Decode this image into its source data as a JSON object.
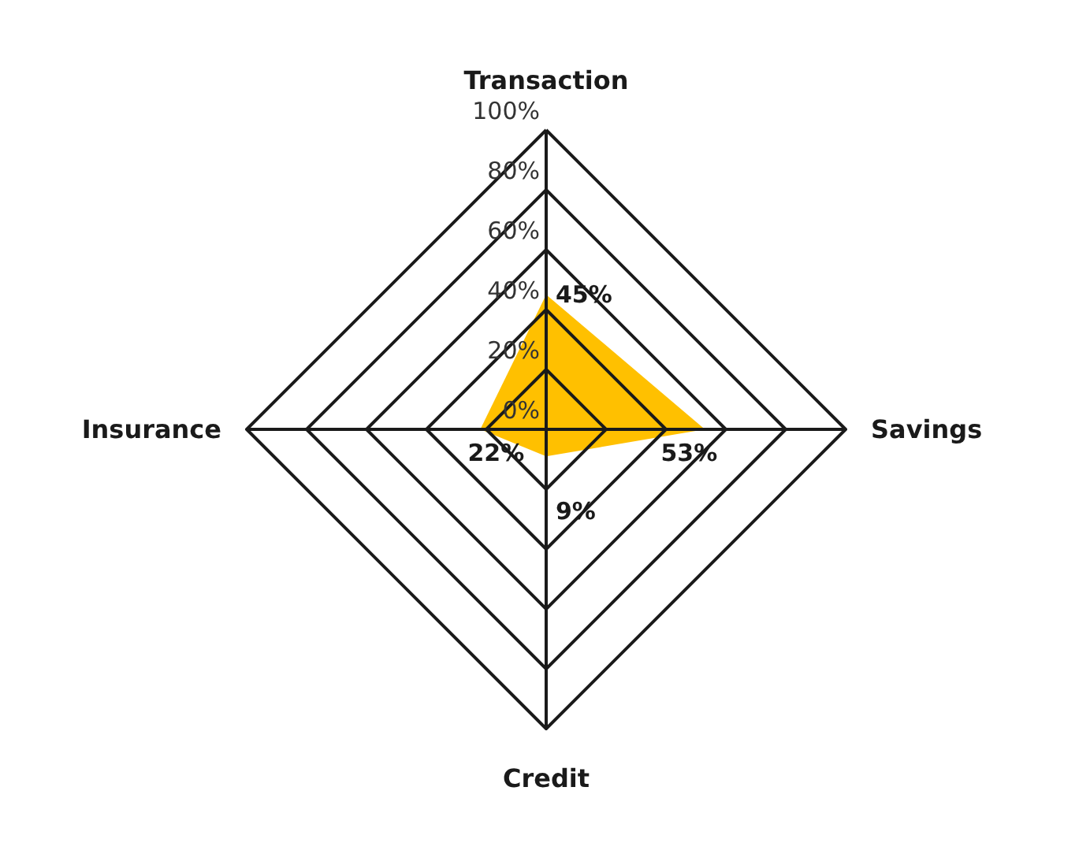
{
  "chart_data": {
    "type": "radar",
    "categories": [
      "Transaction",
      "Savings",
      "Credit",
      "Insurance"
    ],
    "series": [
      {
        "color": "#ffc000",
        "values": [
          45,
          53,
          9,
          22
        ],
        "value_labels": [
          "45%",
          "53%",
          "9%",
          "22%"
        ]
      }
    ],
    "ylim": [
      0,
      100
    ],
    "yticks": [
      {
        "value": 0,
        "label": "0%"
      },
      {
        "value": 20,
        "label": "20%"
      },
      {
        "value": 40,
        "label": "40%"
      },
      {
        "value": 60,
        "label": "60%"
      },
      {
        "value": 80,
        "label": "80%"
      },
      {
        "value": 100,
        "label": "100%"
      }
    ],
    "grid": true
  }
}
